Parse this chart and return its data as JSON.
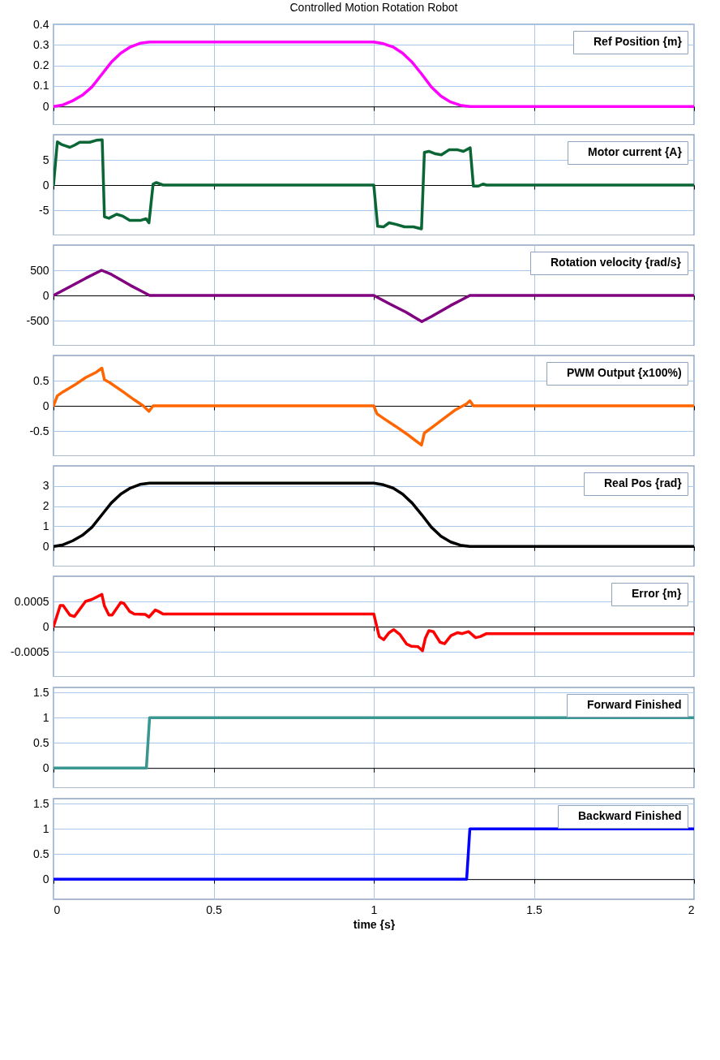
{
  "chart_data": [
    {
      "type": "line",
      "title": "Controlled Motion Rotation Robot",
      "x": [
        0,
        0.03,
        0.06,
        0.09,
        0.12,
        0.15,
        0.18,
        0.21,
        0.24,
        0.27,
        0.3,
        1.0,
        1.03,
        1.06,
        1.09,
        1.12,
        1.15,
        1.18,
        1.21,
        1.24,
        1.27,
        1.3,
        2
      ],
      "series": [
        {
          "name": "Ref Position {m}",
          "color": "#ff00ff",
          "values": [
            0,
            0.008,
            0.028,
            0.055,
            0.095,
            0.155,
            0.215,
            0.26,
            0.29,
            0.308,
            0.314,
            0.314,
            0.306,
            0.29,
            0.26,
            0.215,
            0.157,
            0.095,
            0.05,
            0.022,
            0.006,
            0,
            0
          ]
        }
      ],
      "xlim": [
        0,
        2
      ],
      "xticks": [
        0,
        0.5,
        1,
        1.5,
        2
      ],
      "ylim": [
        -0.09,
        0.4
      ],
      "yticks": [
        0,
        0.1,
        0.2,
        0.3,
        0.4
      ],
      "grid": true,
      "legend": "top right",
      "tick_labels": "y"
    },
    {
      "type": "line",
      "x": [
        0,
        0.012,
        0.024,
        0.037,
        0.051,
        0.065,
        0.082,
        0.113,
        0.134,
        0.152,
        0.159,
        0.173,
        0.197,
        0.217,
        0.238,
        0.273,
        0.289,
        0.298,
        0.311,
        0.321,
        0.342,
        1.0,
        1.012,
        1.031,
        1.048,
        1.069,
        1.096,
        1.124,
        1.149,
        1.158,
        1.172,
        1.193,
        1.211,
        1.235,
        1.262,
        1.28,
        1.301,
        1.311,
        1.327,
        1.341,
        1.352,
        2
      ],
      "series": [
        {
          "name": "Motor current {A}",
          "color": "#0a6634",
          "values": [
            0,
            8.6,
            8.1,
            7.8,
            7.5,
            7.9,
            8.5,
            8.5,
            8.9,
            9.0,
            -6.3,
            -6.6,
            -5.8,
            -6.2,
            -7.0,
            -7.0,
            -6.7,
            -7.5,
            0.2,
            0.5,
            0,
            0,
            -8.2,
            -8.3,
            -7.5,
            -7.8,
            -8.3,
            -8.3,
            -8.7,
            6.5,
            6.7,
            6.2,
            6.0,
            7.0,
            7.0,
            6.7,
            7.4,
            -0.2,
            -0.2,
            0.2,
            0,
            0
          ]
        }
      ],
      "xlim": [
        0,
        2
      ],
      "xticks": [
        0,
        0.5,
        1,
        1.5,
        2
      ],
      "ylim": [
        -10,
        10
      ],
      "yticks": [
        -5,
        0,
        5
      ],
      "grid": true,
      "legend": "top right",
      "tick_labels": "y"
    },
    {
      "type": "line",
      "x": [
        0,
        0.05,
        0.1,
        0.15,
        0.18,
        0.21,
        0.24,
        0.27,
        0.3,
        1.0,
        1.05,
        1.1,
        1.15,
        1.18,
        1.21,
        1.24,
        1.27,
        1.3,
        2
      ],
      "series": [
        {
          "name": "Rotation velocity {rad/s}",
          "color": "#800080",
          "values": [
            0,
            170,
            340,
            500,
            420,
            310,
            200,
            100,
            0,
            0,
            -170,
            -330,
            -520,
            -420,
            -310,
            -200,
            -100,
            0,
            0
          ]
        }
      ],
      "xlim": [
        0,
        2
      ],
      "xticks": [
        0,
        0.5,
        1,
        1.5,
        2
      ],
      "ylim": [
        -1000,
        1000
      ],
      "yticks": [
        -500,
        0,
        500
      ],
      "grid": true,
      "legend": "top right",
      "tick_labels": "y"
    },
    {
      "type": "line",
      "x": [
        0,
        0.012,
        0.03,
        0.065,
        0.1,
        0.134,
        0.151,
        0.159,
        0.176,
        0.217,
        0.252,
        0.28,
        0.298,
        0.311,
        1.0,
        1.01,
        1.033,
        1.069,
        1.103,
        1.149,
        1.158,
        1.186,
        1.221,
        1.255,
        1.29,
        1.3,
        1.311,
        2
      ],
      "series": [
        {
          "name": "PWM Output {x100%)",
          "color": "#ff6600",
          "values": [
            0,
            0.2,
            0.28,
            0.41,
            0.56,
            0.67,
            0.75,
            0.52,
            0.46,
            0.28,
            0.12,
            0,
            -0.11,
            0,
            0,
            -0.16,
            -0.26,
            -0.41,
            -0.56,
            -0.78,
            -0.54,
            -0.41,
            -0.24,
            -0.08,
            0.04,
            0.1,
            0,
            0
          ]
        }
      ],
      "xlim": [
        0,
        2
      ],
      "xticks": [
        0,
        0.5,
        1,
        1.5,
        2
      ],
      "ylim": [
        -1,
        1
      ],
      "yticks": [
        -0.5,
        0,
        0.5
      ],
      "grid": true,
      "legend": "top right",
      "tick_labels": "y"
    },
    {
      "type": "line",
      "x": [
        0,
        0.03,
        0.06,
        0.09,
        0.12,
        0.15,
        0.18,
        0.21,
        0.24,
        0.27,
        0.3,
        1.0,
        1.03,
        1.06,
        1.09,
        1.12,
        1.15,
        1.18,
        1.21,
        1.24,
        1.27,
        1.3,
        2
      ],
      "series": [
        {
          "name": "Real Pos {rad}",
          "color": "#000000",
          "values": [
            0,
            0.08,
            0.28,
            0.55,
            0.95,
            1.55,
            2.15,
            2.6,
            2.9,
            3.08,
            3.14,
            3.14,
            3.06,
            2.9,
            2.6,
            2.15,
            1.57,
            0.95,
            0.5,
            0.22,
            0.06,
            0,
            0
          ]
        }
      ],
      "xlim": [
        0,
        2
      ],
      "xticks": [
        0,
        0.5,
        1,
        1.5,
        2
      ],
      "ylim": [
        -1,
        4
      ],
      "yticks": [
        0,
        1,
        2,
        3
      ],
      "grid": true,
      "legend": "top right",
      "tick_labels": "y"
    },
    {
      "type": "line",
      "x": [
        0,
        0.021,
        0.03,
        0.051,
        0.065,
        0.1,
        0.12,
        0.151,
        0.159,
        0.173,
        0.183,
        0.21,
        0.22,
        0.238,
        0.252,
        0.287,
        0.298,
        0.318,
        0.328,
        0.342,
        1.0,
        1.017,
        1.031,
        1.048,
        1.062,
        1.082,
        1.103,
        1.117,
        1.138,
        1.152,
        1.161,
        1.172,
        1.186,
        1.207,
        1.221,
        1.241,
        1.262,
        1.276,
        1.296,
        1.318,
        1.332,
        1.352,
        2
      ],
      "series": [
        {
          "name": "Error {m}",
          "color": "#ff0000",
          "values": [
            0,
            0.00042,
            0.00042,
            0.00023,
            0.0002,
            0.0005,
            0.00054,
            0.00064,
            0.00041,
            0.00023,
            0.00023,
            0.00048,
            0.00046,
            0.0003,
            0.00025,
            0.00024,
            0.00019,
            0.00033,
            0.0003,
            0.00025,
            0.00025,
            -0.0002,
            -0.00026,
            -0.00012,
            -6e-05,
            -0.00016,
            -0.00035,
            -0.00039,
            -0.0004,
            -0.00048,
            -0.00023,
            -8e-05,
            -0.0001,
            -0.00031,
            -0.00034,
            -0.00018,
            -0.00012,
            -0.00014,
            -0.0001,
            -0.00022,
            -0.0002,
            -0.00014,
            -0.00014
          ]
        }
      ],
      "xlim": [
        0,
        2
      ],
      "xticks": [
        0,
        0.5,
        1,
        1.5,
        2
      ],
      "ylim": [
        -0.001,
        0.001
      ],
      "yticks": [
        -0.0005,
        0,
        0.0005
      ],
      "grid": true,
      "legend": "top right",
      "tick_labels": "y"
    },
    {
      "type": "line",
      "x": [
        0,
        0.29,
        0.3,
        2
      ],
      "series": [
        {
          "name": "Forward Finished",
          "color": "#3a9690",
          "values": [
            0,
            0,
            1,
            1
          ]
        }
      ],
      "xlim": [
        0,
        2
      ],
      "xticks": [
        0,
        0.5,
        1,
        1.5,
        2
      ],
      "ylim": [
        -0.4,
        1.6
      ],
      "yticks": [
        0,
        0.5,
        1,
        1.5
      ],
      "grid": true,
      "legend": "top right",
      "tick_labels": "y"
    },
    {
      "type": "line",
      "xlabel": "time {s}",
      "x": [
        0,
        1.29,
        1.3,
        2
      ],
      "series": [
        {
          "name": "Backward Finished",
          "color": "#0000ff",
          "values": [
            0,
            0,
            1,
            1
          ]
        }
      ],
      "xlim": [
        0,
        2
      ],
      "xticks": [
        0,
        0.5,
        1,
        1.5,
        2
      ],
      "ylim": [
        -0.4,
        1.6
      ],
      "yticks": [
        0,
        0.5,
        1,
        1.5
      ],
      "grid": true,
      "legend": "top right"
    }
  ]
}
